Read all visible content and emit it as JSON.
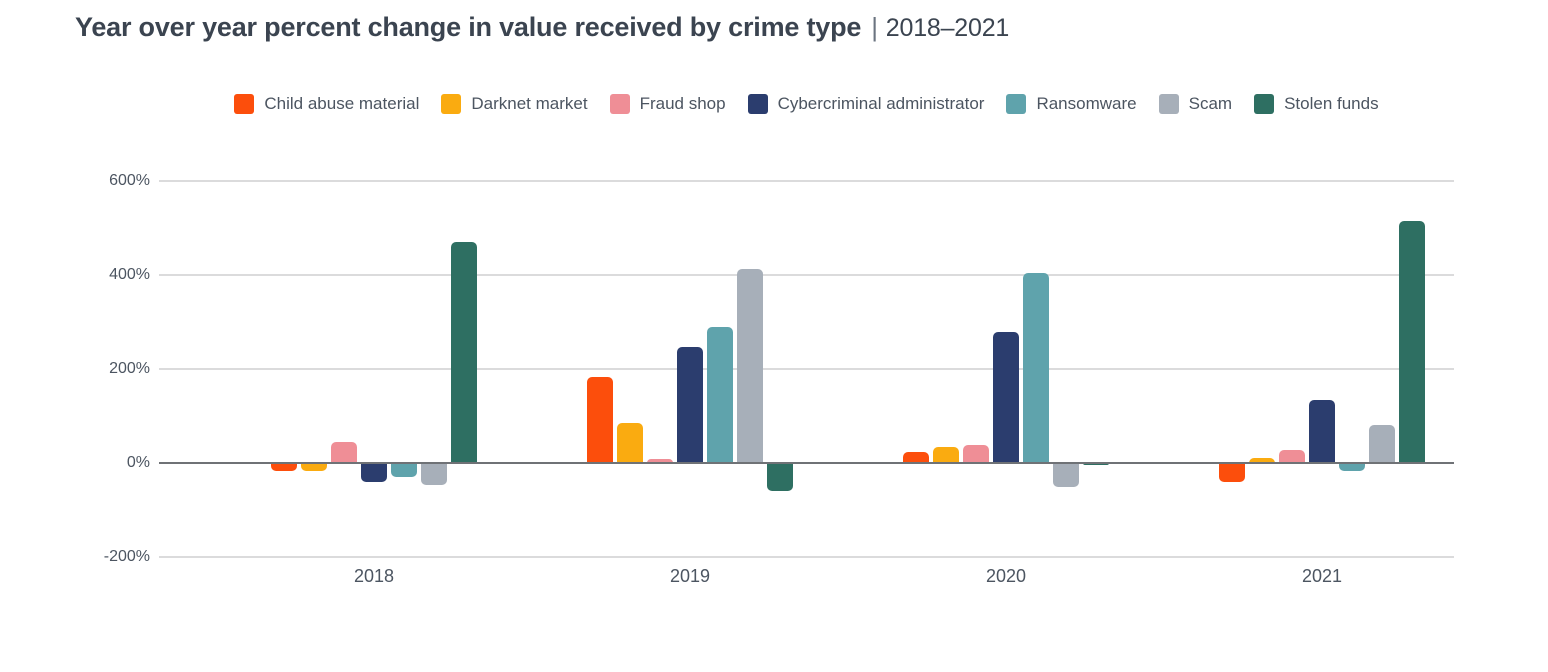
{
  "title": {
    "main": "Year over year percent change in value received by crime type",
    "separator": "|",
    "period": "2018–2021"
  },
  "colors": {
    "background": "#ffffff",
    "title_text": "#3b4450",
    "axis_text": "#4c5561",
    "gridline": "#dbdbdc",
    "zero_line": "#6f7276"
  },
  "chart_data": {
    "type": "bar",
    "title": "Year over year percent change in value received by crime type | 2018–2021",
    "xlabel": "",
    "ylabel": "",
    "ylim": [
      -200,
      600
    ],
    "grid": true,
    "legend_position": "top",
    "ytick_labels": [
      "600%",
      "400%",
      "200%",
      "0%",
      "-200%"
    ],
    "ytick_values": [
      600,
      400,
      200,
      0,
      -200
    ],
    "categories": [
      "2018",
      "2019",
      "2020",
      "2021"
    ],
    "series": [
      {
        "name": "Child abuse material",
        "color": "#fc4e0c",
        "values": [
          -18,
          184,
          23,
          -41
        ]
      },
      {
        "name": "Darknet market",
        "color": "#faab10",
        "values": [
          -18,
          86,
          34,
          11
        ]
      },
      {
        "name": "Fraud shop",
        "color": "#ef8e96",
        "values": [
          44,
          9,
          38,
          27
        ]
      },
      {
        "name": "Cybercriminal administrator",
        "color": "#2b3d6e",
        "values": [
          -41,
          248,
          278,
          134
        ]
      },
      {
        "name": "Ransomware",
        "color": "#5fa3ac",
        "values": [
          -29,
          290,
          405,
          -16
        ]
      },
      {
        "name": "Scam",
        "color": "#a7afb9",
        "values": [
          -47,
          413,
          -52,
          82
        ]
      },
      {
        "name": "Stolen funds",
        "color": "#2e6f62",
        "values": [
          470,
          -60,
          -5,
          516
        ]
      }
    ]
  }
}
